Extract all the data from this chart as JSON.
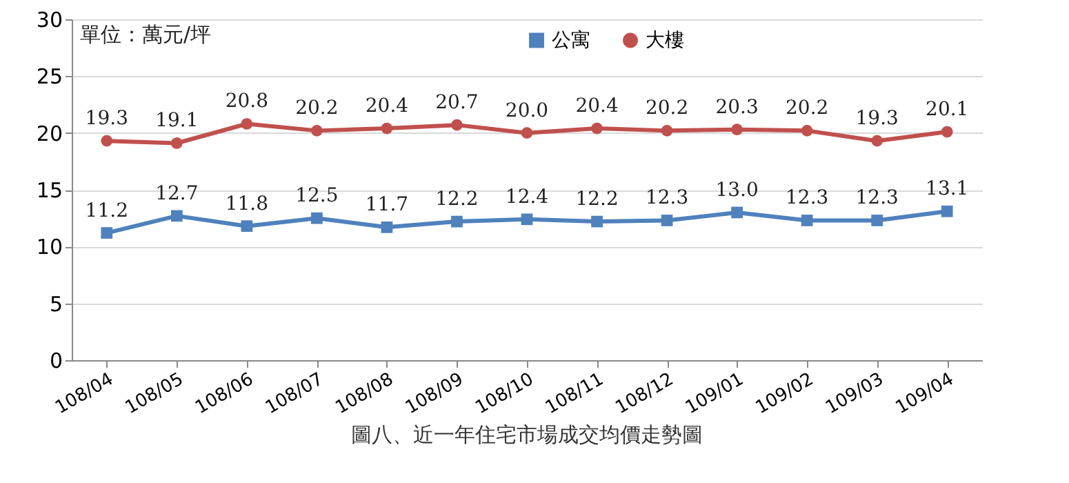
{
  "chart_data": {
    "type": "line",
    "title": "圖八、近一年住宅市場成交均價走勢圖",
    "annotations": [
      "單位：萬元/坪"
    ],
    "categories": [
      "108/04",
      "108/05",
      "108/06",
      "108/07",
      "108/08",
      "108/09",
      "108/10",
      "108/11",
      "108/12",
      "109/01",
      "109/02",
      "109/03",
      "109/04"
    ],
    "series": [
      {
        "name": "公寓",
        "color": "#4f81bd",
        "marker": "square",
        "values": [
          11.2,
          12.7,
          11.8,
          12.5,
          11.7,
          12.2,
          12.4,
          12.2,
          12.3,
          13.0,
          12.3,
          12.3,
          13.1
        ],
        "value_labels": [
          "11.2",
          "12.7",
          "11.8",
          "12.5",
          "11.7",
          "12.2",
          "12.4",
          "12.2",
          "12.3",
          "13.0",
          "12.3",
          "12.3",
          "13.1"
        ]
      },
      {
        "name": "大樓",
        "color": "#c0504d",
        "marker": "circle",
        "values": [
          19.3,
          19.1,
          20.8,
          20.2,
          20.4,
          20.7,
          20.0,
          20.4,
          20.2,
          20.3,
          20.2,
          19.3,
          20.1
        ],
        "value_labels": [
          "19.3",
          "19.1",
          "20.8",
          "20.2",
          "20.4",
          "20.7",
          "20.0",
          "20.4",
          "20.2",
          "20.3",
          "20.2",
          "19.3",
          "20.1"
        ]
      }
    ],
    "ylim": [
      0,
      30
    ],
    "yticks": [
      0,
      5,
      10,
      15,
      20,
      25,
      30
    ],
    "grid": "y",
    "legend": "top"
  }
}
